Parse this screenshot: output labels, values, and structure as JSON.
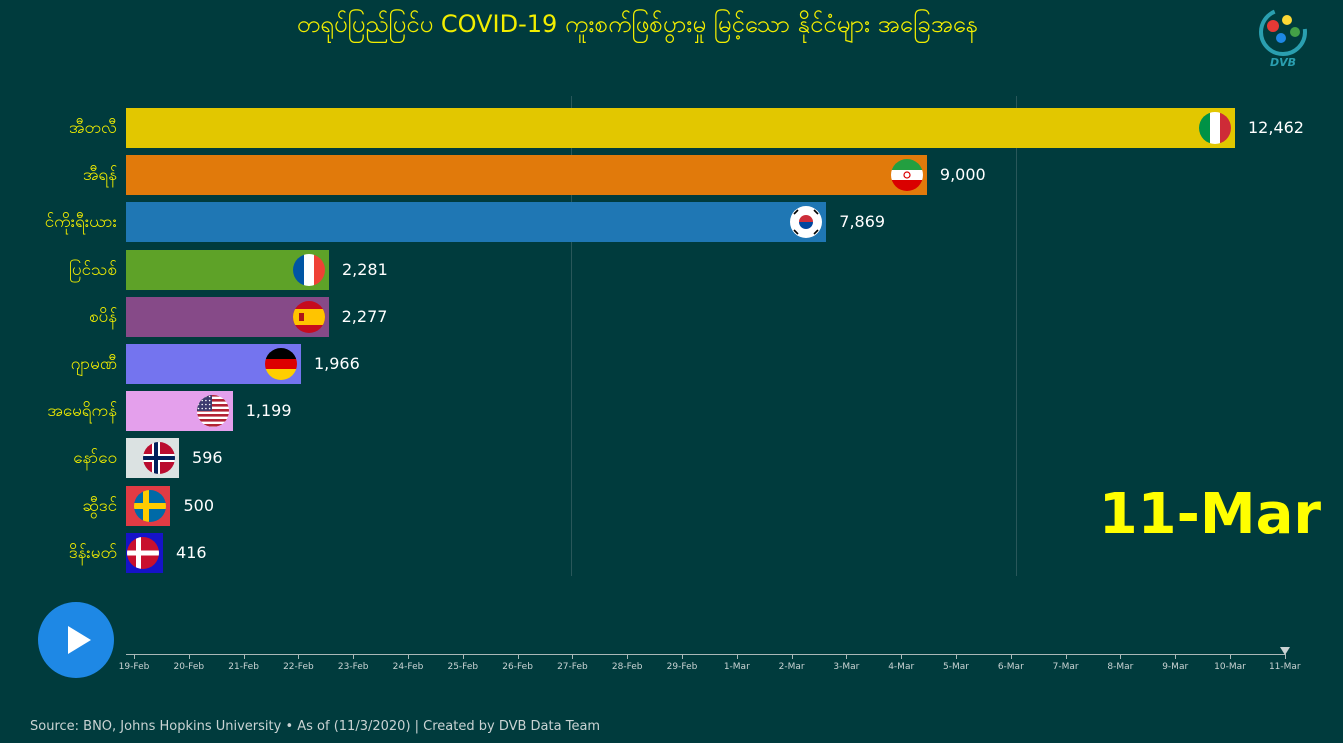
{
  "title": "တရုပ်ပြည်ပြင်ပ COVID-19 ကူးစက်ဖြစ်ပွားမှု မြင့်သော နိုင်ငံများ အခြေအနေ",
  "logo_text": "DVB",
  "current_date": "11-Mar",
  "source": "Source: BNO, Johns Hopkins University • As of (11/3/2020) | Created by DVB Data Team",
  "timeline": {
    "labels": [
      "19-Feb",
      "20-Feb",
      "21-Feb",
      "22-Feb",
      "23-Feb",
      "24-Feb",
      "25-Feb",
      "26-Feb",
      "27-Feb",
      "28-Feb",
      "29-Feb",
      "1-Mar",
      "2-Mar",
      "3-Mar",
      "4-Mar",
      "5-Mar",
      "6-Mar",
      "7-Mar",
      "8-Mar",
      "9-Mar",
      "10-Mar",
      "11-Mar"
    ],
    "current_index": 21
  },
  "chart_data": {
    "type": "bar",
    "orientation": "horizontal",
    "title": "တရုပ်ပြည်ပြင်ပ COVID-19 ကူးစက်ဖြစ်ပွားမှု မြင့်သော နိုင်ငံများ အခြေအနေ",
    "date": "11-Mar",
    "categories": [
      "အီတလီ",
      "အီရန်",
      "င်ကိုးရီးယား",
      "ပြင်သစ်",
      "စပိန်",
      "ဂျာမဏီ",
      "အမေရိကန်",
      "နော်ဝေ",
      "ဆွီဒင်",
      "ဒိန်းမတ်"
    ],
    "values": [
      12462,
      9000,
      7869,
      2281,
      2277,
      1966,
      1199,
      596,
      500,
      416
    ],
    "value_labels": [
      "12,462",
      "9,000",
      "7,869",
      "2,281",
      "2,277",
      "1,966",
      "1,199",
      "596",
      "500",
      "416"
    ],
    "colors": [
      "#e2c700",
      "#e17a0b",
      "#1f77b4",
      "#5ea228",
      "#864a88",
      "#7474ef",
      "#e4a0ec",
      "#dbe2e2",
      "#e13b44",
      "#1613c9"
    ],
    "flags": [
      "italy",
      "iran",
      "south-korea",
      "france",
      "spain",
      "germany",
      "usa",
      "norway",
      "sweden",
      "denmark"
    ],
    "xlim": [
      0,
      12462
    ],
    "grid": true,
    "legend": "none"
  }
}
